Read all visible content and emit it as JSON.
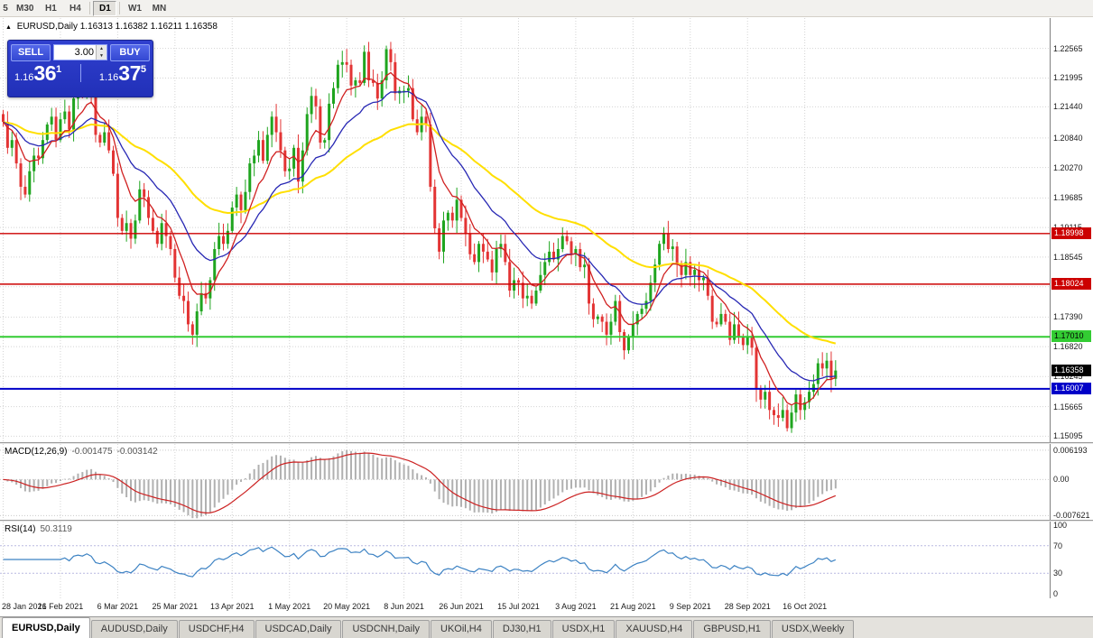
{
  "toolbar": {
    "timeframes": [
      "5",
      "M30",
      "H1",
      "H4",
      "D1",
      "W1",
      "MN"
    ],
    "active": "D1"
  },
  "chart": {
    "symbol": "EURUSD,Daily",
    "ohlc": "1.16313 1.16382 1.16211 1.16358"
  },
  "trade_panel": {
    "sell_label": "SELL",
    "buy_label": "BUY",
    "volume": "3.00",
    "sell_price_prefix": "1.16",
    "sell_price_big": "36",
    "sell_price_sup": "1",
    "buy_price_prefix": "1.16",
    "buy_price_big": "37",
    "buy_price_sup": "5"
  },
  "indicators": {
    "macd": {
      "name": "MACD(12,26,9)",
      "value1": "-0.001475",
      "value2": "-0.003142"
    },
    "rsi": {
      "name": "RSI(14)",
      "value": "50.3119"
    }
  },
  "tabs": [
    "EURUSD,Daily",
    "AUDUSD,Daily",
    "USDCHF,H4",
    "USDCAD,Daily",
    "USDCNH,Daily",
    "UKOil,H4",
    "DJ30,H1",
    "USDX,H1",
    "XAUUSD,H4",
    "GBPUSD,H1",
    "USDX,Weekly"
  ],
  "active_tab": "EURUSD,Daily",
  "chart_data": {
    "type": "candlestick",
    "symbol": "EURUSD",
    "timeframe": "Daily",
    "bar_origin": 2,
    "bar_step": 4.88,
    "bars_per_label": 13,
    "date_labels": [
      "28 Jan 2021",
      "16 Feb 2021",
      "6 Mar 2021",
      "25 Mar 2021",
      "13 Apr 2021",
      "1 May 2021",
      "20 May 2021",
      "8 Jun 2021",
      "26 Jun 2021",
      "15 Jul 2021",
      "3 Aug 2021",
      "21 Aug 2021",
      "9 Sep 2021",
      "28 Sep 2021",
      "16 Oct 2021"
    ],
    "closes": [
      1.2115,
      1.2065,
      1.208,
      1.2035,
      1.199,
      1.1975,
      1.202,
      1.205,
      1.2045,
      1.208,
      1.211,
      1.2125,
      1.208,
      1.212,
      1.2135,
      1.21,
      1.216,
      1.2175,
      1.2165,
      1.2195,
      1.217,
      1.209,
      1.2075,
      1.2095,
      1.206,
      1.2015,
      1.193,
      1.1905,
      1.192,
      1.189,
      1.1925,
      1.1985,
      1.197,
      1.193,
      1.1905,
      1.188,
      1.192,
      1.1895,
      1.187,
      1.1815,
      1.178,
      1.177,
      1.1725,
      1.1705,
      1.175,
      1.1785,
      1.1775,
      1.181,
      1.187,
      1.1895,
      1.188,
      1.1905,
      1.195,
      1.1975,
      1.1945,
      1.198,
      1.2035,
      1.205,
      1.208,
      1.204,
      1.209,
      1.2125,
      1.2095,
      1.206,
      1.202,
      1.2025,
      1.2065,
      1.2,
      1.206,
      1.213,
      1.2165,
      1.2145,
      1.2075,
      1.208,
      1.215,
      1.218,
      1.2225,
      1.223,
      1.2225,
      1.2185,
      1.2195,
      1.219,
      1.225,
      1.2195,
      1.219,
      1.216,
      1.2195,
      1.2255,
      1.223,
      1.217,
      1.2175,
      1.2175,
      1.218,
      1.212,
      1.2095,
      1.2125,
      1.211,
      1.199,
      1.191,
      1.1865,
      1.1925,
      1.194,
      1.1925,
      1.1965,
      1.193,
      1.19,
      1.186,
      1.1845,
      1.188,
      1.1865,
      1.185,
      1.1825,
      1.187,
      1.188,
      1.1845,
      1.179,
      1.181,
      1.1805,
      1.1775,
      1.178,
      1.1765,
      1.179,
      1.182,
      1.1845,
      1.1865,
      1.185,
      1.187,
      1.1895,
      1.1885,
      1.186,
      1.187,
      1.1835,
      1.184,
      1.1765,
      1.1735,
      1.174,
      1.173,
      1.1705,
      1.173,
      1.177,
      1.171,
      1.1675,
      1.17,
      1.1725,
      1.1745,
      1.1755,
      1.177,
      1.1805,
      1.184,
      1.188,
      1.19,
      1.187,
      1.1875,
      1.184,
      1.182,
      1.1845,
      1.182,
      1.183,
      1.181,
      1.1815,
      1.178,
      1.173,
      1.1725,
      1.1745,
      1.173,
      1.1695,
      1.1725,
      1.17,
      1.1685,
      1.17,
      1.168,
      1.16,
      1.158,
      1.1595,
      1.156,
      1.155,
      1.1545,
      1.156,
      1.1525,
      1.1555,
      1.159,
      1.156,
      1.1575,
      1.1595,
      1.161,
      1.165,
      1.164,
      1.1655,
      1.162,
      1.1636
    ],
    "price_axis": {
      "min": 1.1498,
      "max": 1.2315,
      "ticks": [
        "1.22565",
        "1.21995",
        "1.21440",
        "1.20840",
        "1.20270",
        "1.19685",
        "1.19115",
        "1.18545",
        "1.17975",
        "1.17390",
        "1.16820",
        "1.16245",
        "1.15665",
        "1.15095"
      ]
    },
    "levels": [
      {
        "price": 1.18998,
        "label": "1.18998",
        "color": "#cc0000",
        "text": "#ffffff",
        "width": 1.4
      },
      {
        "price": 1.18024,
        "label": "1.18024",
        "color": "#cc0000",
        "text": "#ffffff",
        "width": 1.4
      },
      {
        "price": 1.1701,
        "label": "1.17010",
        "color": "#33cc33",
        "text": "#000000",
        "width": 2
      },
      {
        "price": 1.16007,
        "label": "1.16007",
        "color": "#0000c8",
        "text": "#ffffff",
        "width": 2
      }
    ],
    "current": {
      "price": 1.16358,
      "label": "1.16358",
      "color": "#000000",
      "text": "#ffffff"
    },
    "ma": {
      "fast_period": 8,
      "mid_period": 20,
      "slow_period": 50
    },
    "macd": {
      "params": "12,26,9",
      "min": -0.0085,
      "max": 0.0075,
      "ticks": [
        "0.006193",
        "0.00",
        "-0.007621"
      ]
    },
    "rsi": {
      "period": 14,
      "ticks": [
        "100",
        "70",
        "30",
        "0"
      ]
    },
    "colors": {
      "up": "#1fa51f",
      "down": "#e33434",
      "ma_fast": "#d02020",
      "ma_mid": "#2828b4",
      "ma_slow": "#ffdf00",
      "macd_hist": "#b0b0b0",
      "macd_signal": "#cc2222",
      "rsi": "#3c82c3",
      "grid": "#d4d4d4"
    }
  }
}
